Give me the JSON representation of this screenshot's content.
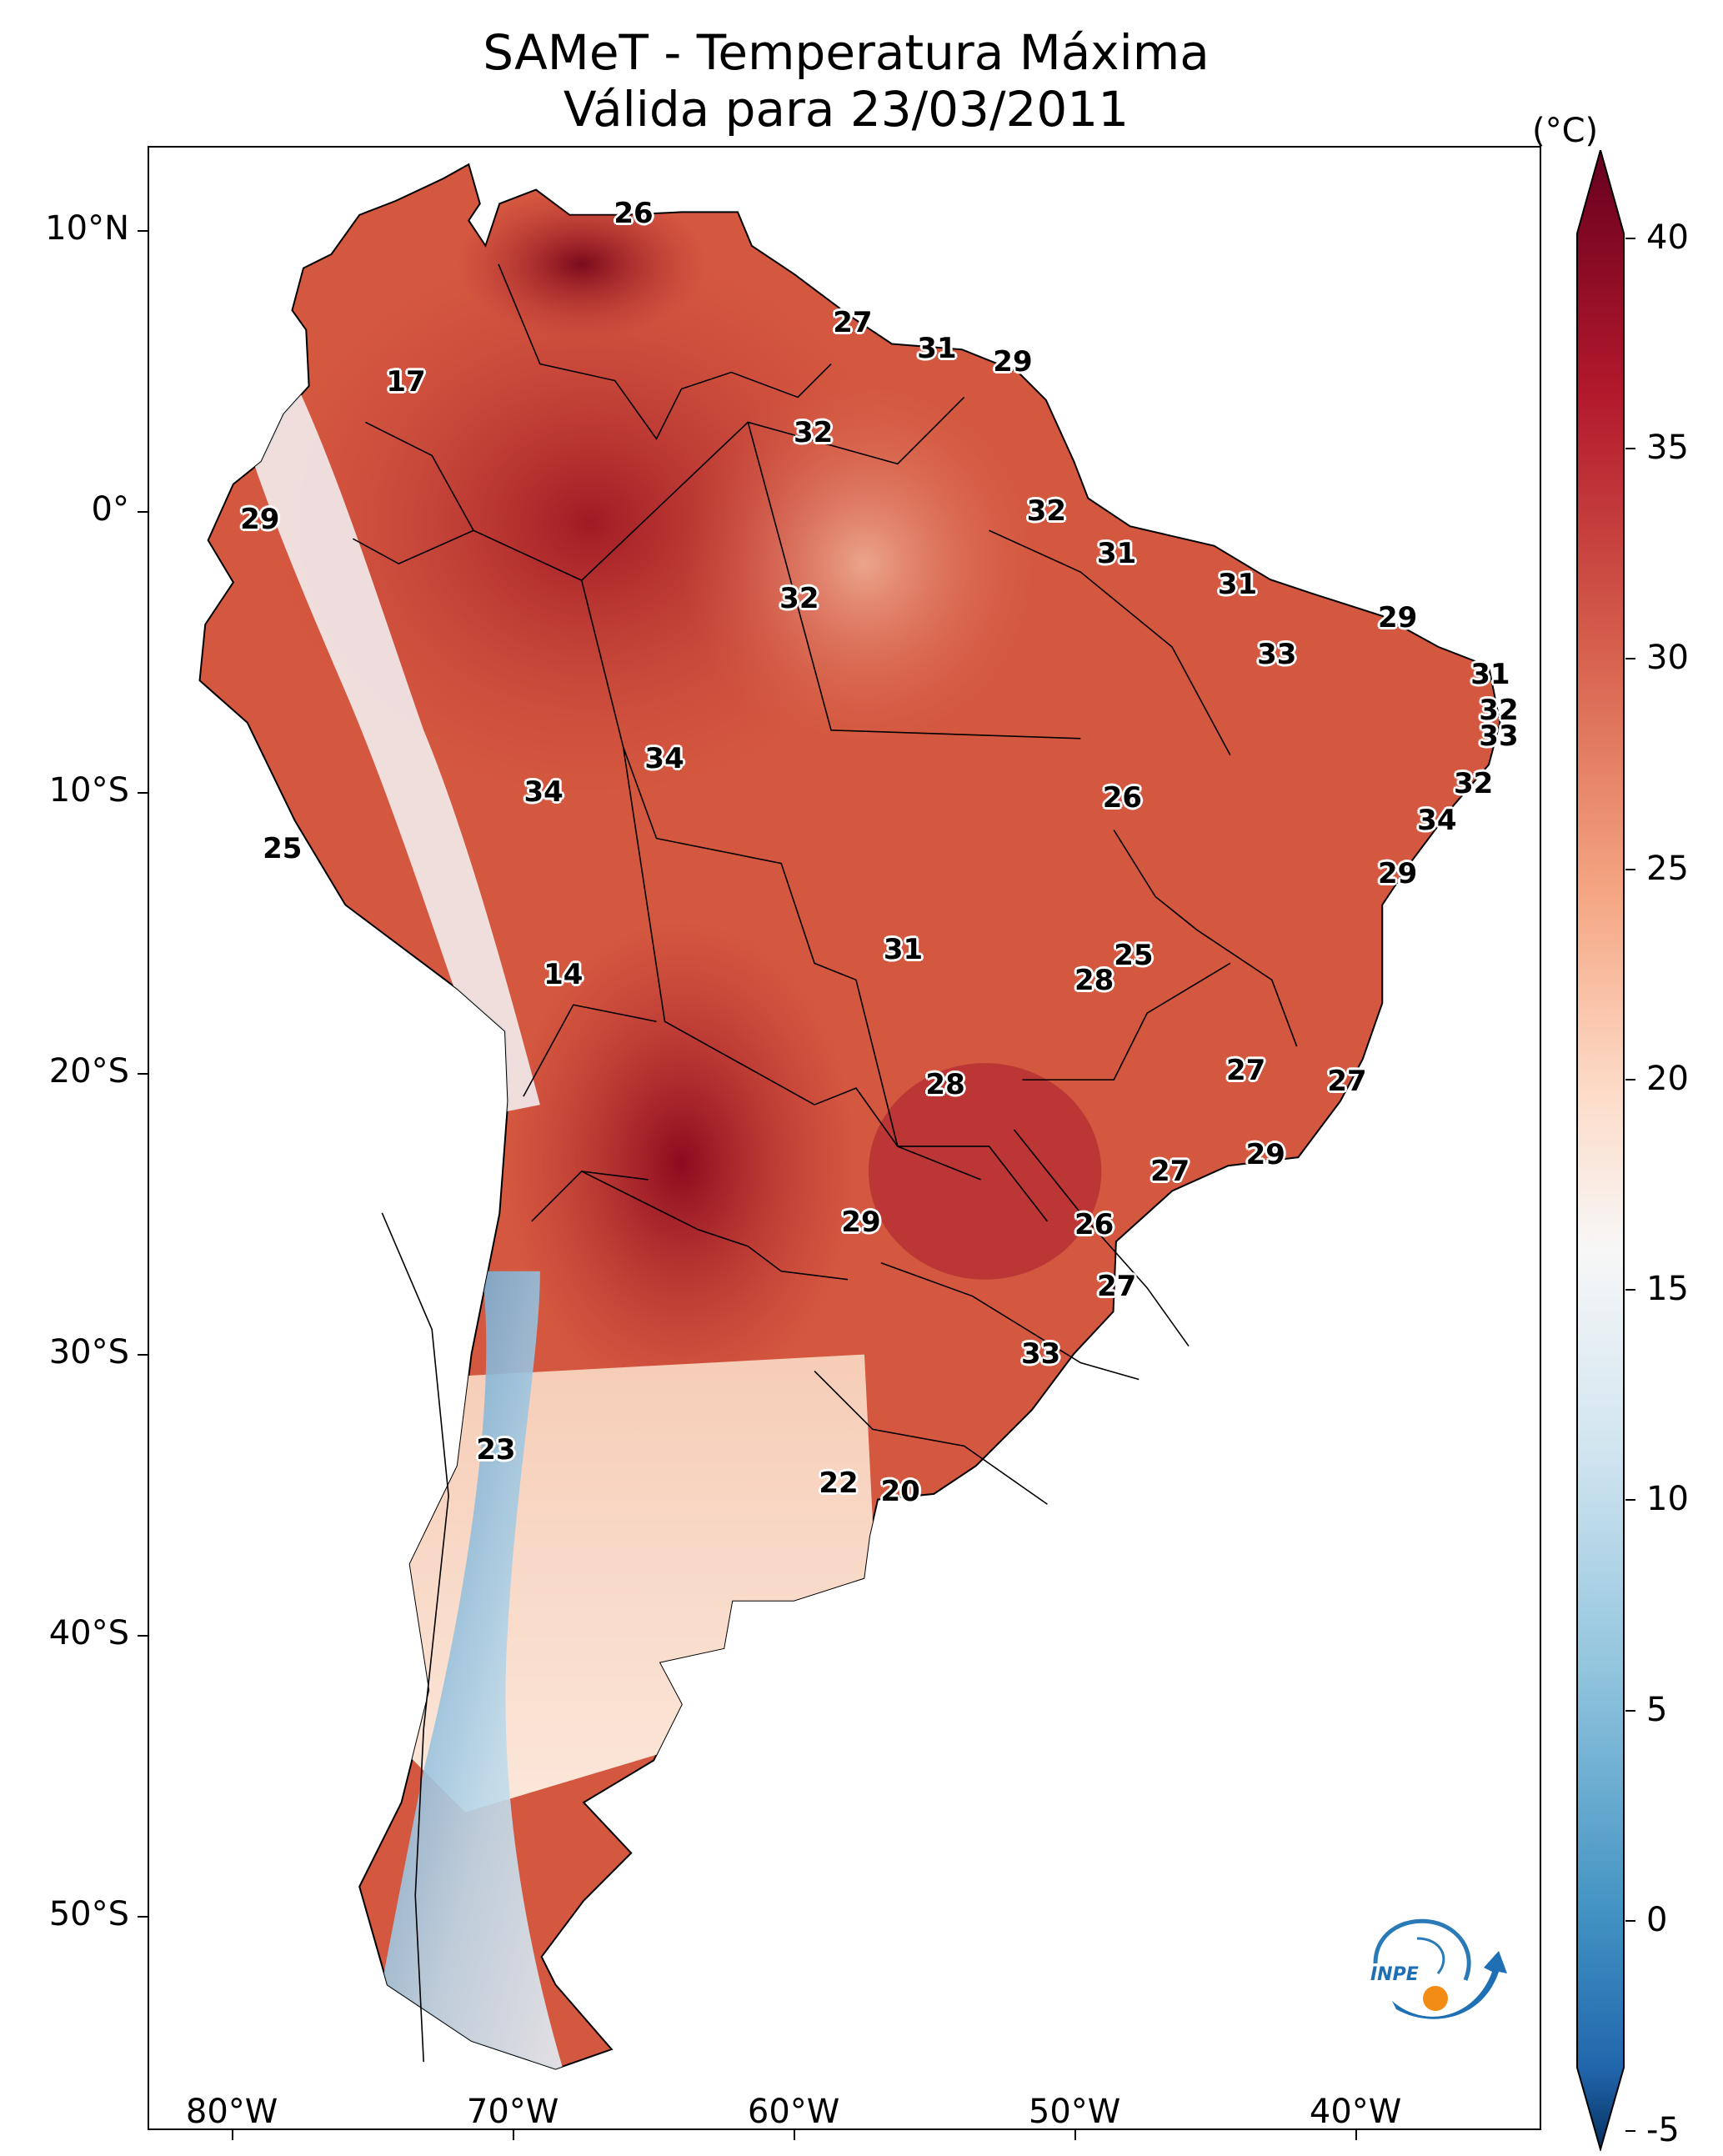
{
  "title": {
    "line1": "SAMeT - Temperatura Máxima",
    "line2": "Válida para 23/03/2011"
  },
  "axes": {
    "lat_labels": [
      "10°N",
      "0°",
      "10°S",
      "20°S",
      "30°S",
      "40°S",
      "50°S"
    ],
    "lon_labels": [
      "80°W",
      "70°W",
      "60°W",
      "50°W",
      "40°W"
    ]
  },
  "colorbar": {
    "unit": "(°C)",
    "min": -5,
    "max": 40,
    "ticks": [
      "40",
      "35",
      "30",
      "25",
      "20",
      "15",
      "10",
      "5",
      "0",
      "-5"
    ],
    "colors": {
      "high": "#67001f",
      "mid": "#f7f7f7",
      "low": "#053061"
    }
  },
  "logo": {
    "text": "INPE"
  },
  "station_labels": [
    {
      "value": "26",
      "lon": -65.7,
      "lat": 10.6
    },
    {
      "value": "27",
      "lon": -57.9,
      "lat": 6.7
    },
    {
      "value": "31",
      "lon": -54.9,
      "lat": 5.8
    },
    {
      "value": "29",
      "lon": -52.2,
      "lat": 5.3
    },
    {
      "value": "17",
      "lon": -73.8,
      "lat": 4.6
    },
    {
      "value": "32",
      "lon": -59.3,
      "lat": 2.8
    },
    {
      "value": "29",
      "lon": -79.0,
      "lat": -0.3
    },
    {
      "value": "32",
      "lon": -51.0,
      "lat": 0.0
    },
    {
      "value": "31",
      "lon": -48.5,
      "lat": -1.5
    },
    {
      "value": "31",
      "lon": -44.2,
      "lat": -2.6
    },
    {
      "value": "32",
      "lon": -59.8,
      "lat": -3.1
    },
    {
      "value": "29",
      "lon": -38.5,
      "lat": -3.8
    },
    {
      "value": "33",
      "lon": -42.8,
      "lat": -5.1
    },
    {
      "value": "31",
      "lon": -35.2,
      "lat": -5.8
    },
    {
      "value": "32",
      "lon": -34.9,
      "lat": -7.1
    },
    {
      "value": "33",
      "lon": -34.9,
      "lat": -8.0
    },
    {
      "value": "34",
      "lon": -64.6,
      "lat": -8.8
    },
    {
      "value": "34",
      "lon": -68.9,
      "lat": -10.0
    },
    {
      "value": "32",
      "lon": -35.8,
      "lat": -9.7
    },
    {
      "value": "26",
      "lon": -48.3,
      "lat": -10.2
    },
    {
      "value": "34",
      "lon": -37.1,
      "lat": -11.0
    },
    {
      "value": "25",
      "lon": -78.2,
      "lat": -12.0
    },
    {
      "value": "29",
      "lon": -38.5,
      "lat": -12.9
    },
    {
      "value": "31",
      "lon": -56.1,
      "lat": -15.6
    },
    {
      "value": "25",
      "lon": -47.9,
      "lat": -15.8
    },
    {
      "value": "28",
      "lon": -49.3,
      "lat": -16.7
    },
    {
      "value": "14",
      "lon": -68.2,
      "lat": -16.5
    },
    {
      "value": "27",
      "lon": -43.9,
      "lat": -19.9
    },
    {
      "value": "27",
      "lon": -40.3,
      "lat": -20.3
    },
    {
      "value": "28",
      "lon": -54.6,
      "lat": -20.4
    },
    {
      "value": "29",
      "lon": -43.2,
      "lat": -22.9
    },
    {
      "value": "27",
      "lon": -46.6,
      "lat": -23.5
    },
    {
      "value": "29",
      "lon": -57.6,
      "lat": -25.3
    },
    {
      "value": "26",
      "lon": -49.3,
      "lat": -25.4
    },
    {
      "value": "27",
      "lon": -48.5,
      "lat": -27.6
    },
    {
      "value": "33",
      "lon": -51.2,
      "lat": -30.0
    },
    {
      "value": "23",
      "lon": -70.6,
      "lat": -33.4
    },
    {
      "value": "22",
      "lon": -58.4,
      "lat": -34.6
    },
    {
      "value": "20",
      "lon": -56.2,
      "lat": -34.9
    }
  ]
}
